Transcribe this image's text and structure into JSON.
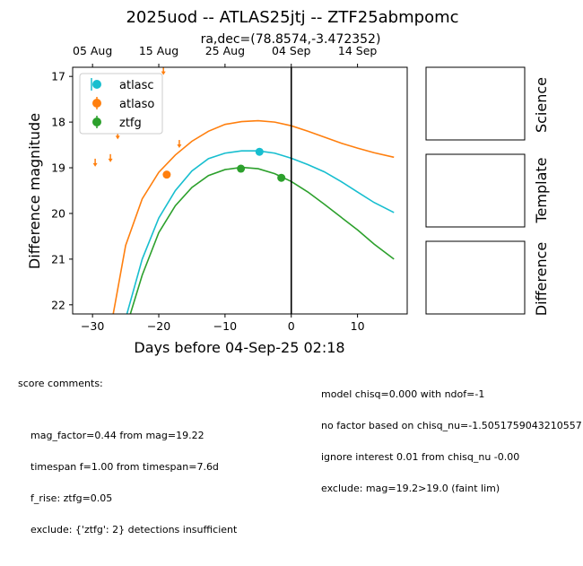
{
  "figure": {
    "title": "2025uod -- ATLAS25jtj -- ZTF25abmpomc",
    "top_axis_label": "ra,dec=(78.8574,-3.472352)",
    "top_axis_ticks": [
      "05 Aug",
      "15 Aug",
      "25 Aug",
      "04 Sep",
      "14 Sep"
    ],
    "panels": {
      "science": "Science",
      "template": "Template",
      "difference": "Difference"
    },
    "score_comments_title": "score comments:",
    "score_comments_left": [
      "mag_factor=0.44 from mag=19.22",
      "timespan f=1.00 from timespan=7.6d",
      "f_rise: ztfg=0.05",
      "exclude: {'ztfg': 2} detections insufficient"
    ],
    "score_comments_right": [
      "model chisq=0.000 with ndof=-1",
      "no factor based on chisq_nu=-1.5051759043210557",
      "ignore interest 0.01 from chisq_nu -0.00",
      "exclude: mag=19.2>19.0 (faint lim)"
    ]
  },
  "chart_data": {
    "type": "scatter",
    "title": "2025uod -- ATLAS25jtj -- ZTF25abmpomc",
    "xlabel": "Days before 04-Sep-25 02:18",
    "ylabel": "Difference magnitude",
    "xlim": [
      -33,
      17.5
    ],
    "ylim": [
      22.2,
      16.8
    ],
    "y_inverted": true,
    "xticks": [
      -30,
      -20,
      -10,
      0,
      10
    ],
    "yticks": [
      17,
      18,
      19,
      20,
      21,
      22
    ],
    "top_axis_ticks_x": [
      -30,
      -20,
      -10,
      0,
      10
    ],
    "vline_x": 0,
    "legend_position": "top-left",
    "series": [
      {
        "name": "atlasc",
        "color": "#17becf",
        "points": [
          {
            "x": -4.8,
            "y": 18.65,
            "err": 0.04
          }
        ],
        "upper_limits": [],
        "model": [
          [
            -25.0,
            22.3
          ],
          [
            -22.5,
            21.0
          ],
          [
            -20.0,
            20.1
          ],
          [
            -17.5,
            19.5
          ],
          [
            -15.0,
            19.07
          ],
          [
            -12.5,
            18.8
          ],
          [
            -10.0,
            18.68
          ],
          [
            -7.5,
            18.63
          ],
          [
            -5.0,
            18.63
          ],
          [
            -2.5,
            18.68
          ],
          [
            0.0,
            18.79
          ],
          [
            2.5,
            18.93
          ],
          [
            5.0,
            19.09
          ],
          [
            7.5,
            19.3
          ],
          [
            10.0,
            19.53
          ],
          [
            12.5,
            19.76
          ],
          [
            15.5,
            19.98
          ]
        ]
      },
      {
        "name": "atlaso",
        "color": "#ff7f0e",
        "points": [
          {
            "x": -18.8,
            "y": 19.15,
            "err": 0.05
          }
        ],
        "upper_limits": [
          {
            "x": -29.6,
            "y": 18.88
          },
          {
            "x": -27.3,
            "y": 18.78
          },
          {
            "x": -26.2,
            "y": 18.28
          },
          {
            "x": -19.3,
            "y": 16.87
          },
          {
            "x": -16.9,
            "y": 18.47
          }
        ],
        "model": [
          [
            -27.0,
            22.3
          ],
          [
            -25.0,
            20.7
          ],
          [
            -22.5,
            19.68
          ],
          [
            -20.0,
            19.1
          ],
          [
            -17.5,
            18.72
          ],
          [
            -15.0,
            18.42
          ],
          [
            -12.5,
            18.2
          ],
          [
            -10.0,
            18.05
          ],
          [
            -7.5,
            17.99
          ],
          [
            -5.0,
            17.97
          ],
          [
            -2.5,
            18.0
          ],
          [
            0.0,
            18.08
          ],
          [
            2.5,
            18.2
          ],
          [
            5.0,
            18.33
          ],
          [
            7.5,
            18.46
          ],
          [
            10.0,
            18.57
          ],
          [
            12.5,
            18.67
          ],
          [
            15.5,
            18.77
          ]
        ]
      },
      {
        "name": "ztfg",
        "color": "#2ca02c",
        "points": [
          {
            "x": -7.6,
            "y": 19.02,
            "err": 0.04
          },
          {
            "x": -1.5,
            "y": 19.22,
            "err": 0.05
          }
        ],
        "upper_limits": [],
        "model": [
          [
            -24.5,
            22.3
          ],
          [
            -22.5,
            21.35
          ],
          [
            -20.0,
            20.42
          ],
          [
            -17.5,
            19.83
          ],
          [
            -15.0,
            19.43
          ],
          [
            -12.5,
            19.17
          ],
          [
            -10.0,
            19.04
          ],
          [
            -7.5,
            18.99
          ],
          [
            -5.0,
            19.02
          ],
          [
            -2.5,
            19.13
          ],
          [
            0.0,
            19.3
          ],
          [
            2.5,
            19.53
          ],
          [
            5.0,
            19.8
          ],
          [
            7.5,
            20.08
          ],
          [
            10.0,
            20.36
          ],
          [
            12.5,
            20.67
          ],
          [
            15.5,
            21.0
          ]
        ]
      }
    ]
  }
}
